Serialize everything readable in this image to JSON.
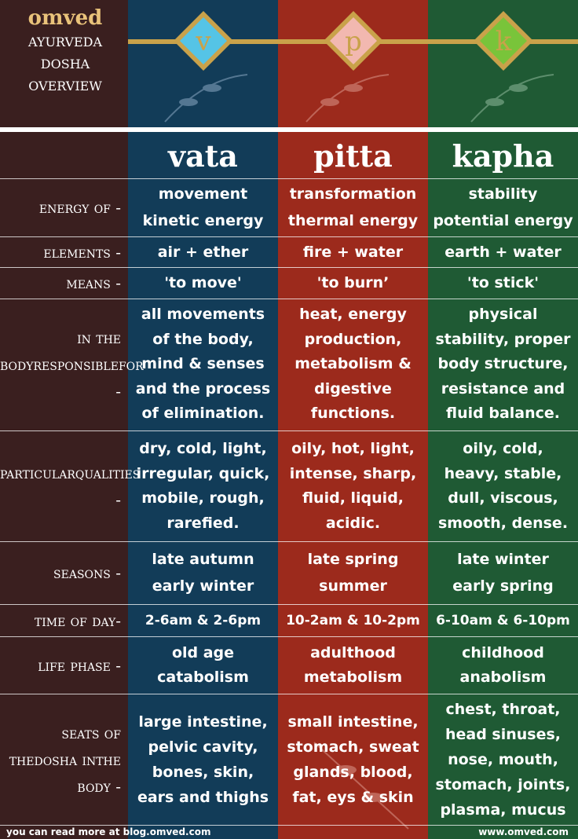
{
  "brand": {
    "logo_text": "omved",
    "title_lines": [
      "ayurveda",
      "dosha",
      "overview"
    ]
  },
  "colors": {
    "vata": "#123c58",
    "pitta": "#9c2a1c",
    "kapha": "#1f5a34",
    "label_column": "#3a1f1f",
    "gold": "#c9a24a"
  },
  "medals": [
    {
      "letter": "v",
      "fill": "#55c4e6"
    },
    {
      "letter": "p",
      "fill": "#f2b8b0"
    },
    {
      "letter": "k",
      "fill": "#79c43a"
    }
  ],
  "columns": [
    "vata",
    "pitta",
    "kapha"
  ],
  "rows": [
    {
      "label": [
        "energy of -"
      ],
      "vata": [
        "movement",
        "kinetic energy"
      ],
      "pitta": [
        "transformation",
        "thermal energy"
      ],
      "kapha": [
        "stability",
        "potential energy"
      ]
    },
    {
      "label": [
        "elements -"
      ],
      "vata": [
        "air + ether"
      ],
      "pitta": [
        "fire + water"
      ],
      "kapha": [
        "earth + water"
      ]
    },
    {
      "label": [
        "means -"
      ],
      "vata": [
        "'to move'"
      ],
      "pitta": [
        "'to burn’"
      ],
      "kapha": [
        "'to stick'"
      ]
    },
    {
      "label": [
        "in the body",
        "responsible",
        "for -"
      ],
      "vata": [
        "all movements",
        "of the body,",
        "mind & senses",
        "and the process",
        "of elimination."
      ],
      "pitta": [
        "heat, energy",
        "production,",
        "metabolism &",
        "digestive",
        "functions."
      ],
      "kapha": [
        "physical",
        "stability, proper",
        "body structure,",
        "resistance and",
        "fluid balance."
      ]
    },
    {
      "label": [
        "particular",
        "qualities -"
      ],
      "vata": [
        "dry, cold, light,",
        "irregular, quick,",
        "mobile, rough,",
        "rarefied."
      ],
      "pitta": [
        "oily, hot, light,",
        "intense, sharp,",
        "fluid, liquid,",
        "acidic."
      ],
      "kapha": [
        "oily, cold,",
        "heavy, stable,",
        "dull, viscous,",
        "smooth, dense."
      ]
    },
    {
      "label": [
        "seasons -"
      ],
      "vata": [
        "late autumn",
        "early winter"
      ],
      "pitta": [
        "late spring",
        "summer"
      ],
      "kapha": [
        "late winter",
        "early spring"
      ]
    },
    {
      "label": [
        "time of day-"
      ],
      "vata": [
        "2-6am & 2-6pm"
      ],
      "pitta": [
        "10-2am & 10-2pm"
      ],
      "kapha": [
        "6-10am & 6-10pm"
      ]
    },
    {
      "label": [
        "life phase -"
      ],
      "vata": [
        "old age",
        "catabolism"
      ],
      "pitta": [
        "adulthood",
        "metabolism"
      ],
      "kapha": [
        "childhood",
        "anabolism"
      ]
    },
    {
      "label": [
        "seats of the",
        "dosha in",
        "the body -"
      ],
      "vata": [
        "large intestine,",
        "pelvic cavity,",
        "bones, skin,",
        "ears and thighs"
      ],
      "pitta": [
        "small intestine,",
        "stomach, sweat",
        "glands, blood,",
        "fat, eys & skin"
      ],
      "kapha": [
        "chest, throat,",
        "head sinuses,",
        "nose, mouth,",
        "stomach, joints,",
        "plasma, mucus"
      ]
    }
  ],
  "footer": {
    "left": "you can read more at blog.omved.com",
    "right": "www.omved.com"
  }
}
